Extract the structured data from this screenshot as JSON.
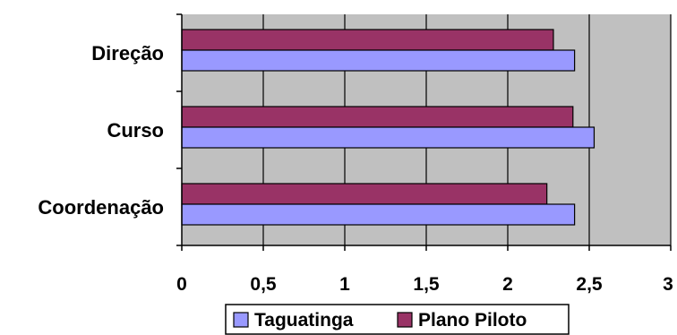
{
  "chart_data": {
    "type": "bar",
    "orientation": "horizontal",
    "categories": [
      "Direção",
      "Curso",
      "Coordenação"
    ],
    "series": [
      {
        "name": "Taguatinga",
        "values": [
          2.41,
          2.53,
          2.41
        ],
        "color": "#9999ff"
      },
      {
        "name": "Plano Piloto",
        "values": [
          2.28,
          2.4,
          2.24
        ],
        "color": "#993366"
      }
    ],
    "xlim": [
      0,
      3
    ],
    "xticks": [
      "0",
      "0,5",
      "1",
      "1,5",
      "2",
      "2,5",
      "3"
    ],
    "xtick_values": [
      0,
      0.5,
      1,
      1.5,
      2,
      2.5,
      3
    ],
    "grid": "vertical",
    "plot_background": "#c0c0c0",
    "legend_position": "bottom",
    "title": "",
    "xlabel": "",
    "ylabel": ""
  }
}
